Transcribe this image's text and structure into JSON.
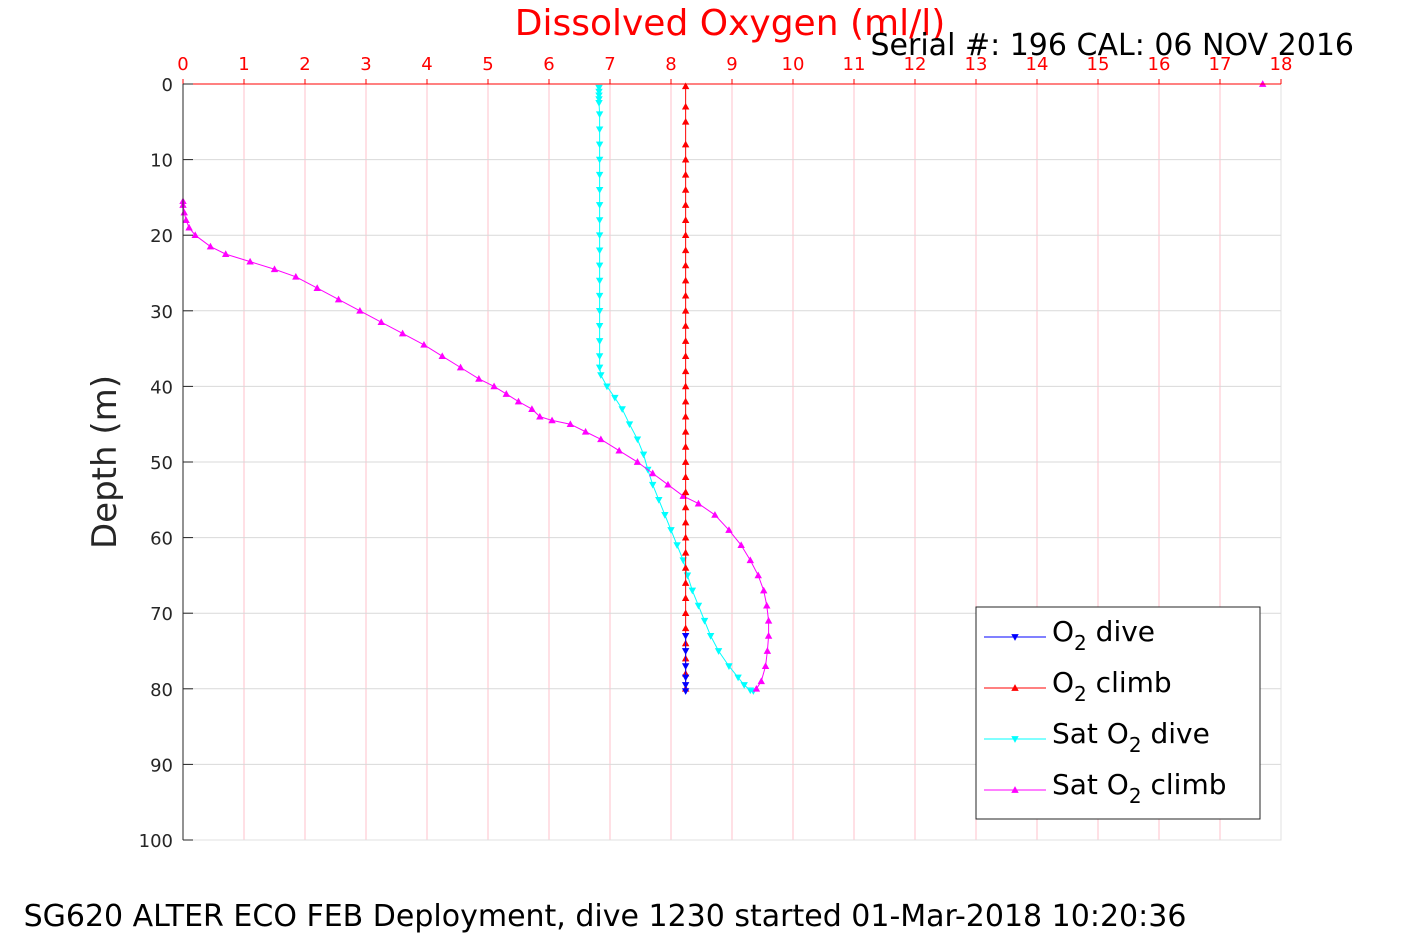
{
  "chart_data": {
    "type": "line",
    "title": "Dissolved Oxygen (ml/l)",
    "title_color": "#ff0000",
    "subtitle": "Serial #: 196  CAL: 06 NOV 2016",
    "ylabel": "Depth (m)",
    "caption": "SG620 ALTER ECO FEB Deployment, dive 1230 started 01-Mar-2018 10:20:36",
    "xlim": [
      0,
      18
    ],
    "ylim": [
      0,
      100
    ],
    "y_reversed": true,
    "x_axis_position": "top",
    "x_ticks": [
      "0",
      "1",
      "2",
      "3",
      "4",
      "5",
      "6",
      "7",
      "8",
      "9",
      "10",
      "11",
      "12",
      "13",
      "14",
      "15",
      "16",
      "17",
      "18"
    ],
    "y_ticks": [
      "0",
      "10",
      "20",
      "30",
      "40",
      "50",
      "60",
      "70",
      "80",
      "90",
      "100"
    ],
    "x_tick_color": "#ff0000",
    "x_grid_color": "#ffc0cb",
    "y_grid_color": "#d9d9d9",
    "grid": true,
    "legend_position": "bottom-right",
    "series": [
      {
        "name_main": "O",
        "name_sub": "2",
        "name_tail": " dive",
        "name_pre": "",
        "color": "#0000ff",
        "marker": "triangle-down",
        "points": [
          [
            8.24,
            73
          ],
          [
            8.24,
            75
          ],
          [
            8.24,
            77
          ],
          [
            8.24,
            78.5
          ],
          [
            8.24,
            79.5
          ],
          [
            8.24,
            80.3
          ]
        ]
      },
      {
        "name_main": "O",
        "name_sub": "2",
        "name_tail": " climb",
        "name_pre": "",
        "color": "#ff0000",
        "marker": "triangle-up",
        "points": [
          [
            8.24,
            80
          ],
          [
            8.24,
            78
          ],
          [
            8.24,
            76
          ],
          [
            8.24,
            74
          ],
          [
            8.24,
            72
          ],
          [
            8.24,
            70
          ],
          [
            8.24,
            68
          ],
          [
            8.24,
            66
          ],
          [
            8.24,
            64
          ],
          [
            8.24,
            62
          ],
          [
            8.24,
            60
          ],
          [
            8.24,
            58
          ],
          [
            8.24,
            56
          ],
          [
            8.24,
            54
          ],
          [
            8.24,
            52
          ],
          [
            8.24,
            50
          ],
          [
            8.24,
            48
          ],
          [
            8.24,
            46
          ],
          [
            8.24,
            44
          ],
          [
            8.24,
            42
          ],
          [
            8.24,
            40
          ],
          [
            8.24,
            38
          ],
          [
            8.24,
            36
          ],
          [
            8.24,
            34
          ],
          [
            8.24,
            32
          ],
          [
            8.24,
            30
          ],
          [
            8.24,
            28
          ],
          [
            8.24,
            26
          ],
          [
            8.24,
            24
          ],
          [
            8.24,
            22
          ],
          [
            8.24,
            20
          ],
          [
            8.24,
            18
          ],
          [
            8.24,
            16
          ],
          [
            8.24,
            14
          ],
          [
            8.24,
            12
          ],
          [
            8.24,
            10
          ],
          [
            8.24,
            8
          ],
          [
            8.24,
            5
          ],
          [
            8.24,
            3
          ],
          [
            8.24,
            0.3
          ]
        ]
      },
      {
        "name_main": "O",
        "name_sub": "2",
        "name_tail": " dive",
        "name_pre": "Sat ",
        "color": "#00ffff",
        "marker": "triangle-down",
        "points": [
          [
            6.82,
            0.5
          ],
          [
            6.82,
            1
          ],
          [
            6.82,
            1.5
          ],
          [
            6.82,
            2
          ],
          [
            6.82,
            2.5
          ],
          [
            6.83,
            4
          ],
          [
            6.83,
            6
          ],
          [
            6.83,
            8
          ],
          [
            6.83,
            10
          ],
          [
            6.83,
            12
          ],
          [
            6.83,
            14
          ],
          [
            6.83,
            16
          ],
          [
            6.83,
            18
          ],
          [
            6.83,
            20
          ],
          [
            6.83,
            22
          ],
          [
            6.83,
            24
          ],
          [
            6.83,
            26
          ],
          [
            6.83,
            28
          ],
          [
            6.83,
            30
          ],
          [
            6.83,
            32
          ],
          [
            6.83,
            34
          ],
          [
            6.83,
            36
          ],
          [
            6.83,
            37.5
          ],
          [
            6.85,
            38.5
          ],
          [
            6.95,
            40
          ],
          [
            7.08,
            41.5
          ],
          [
            7.2,
            43
          ],
          [
            7.32,
            45
          ],
          [
            7.45,
            47
          ],
          [
            7.55,
            49
          ],
          [
            7.62,
            51
          ],
          [
            7.7,
            53
          ],
          [
            7.8,
            55
          ],
          [
            7.9,
            57
          ],
          [
            8.0,
            59
          ],
          [
            8.1,
            61
          ],
          [
            8.2,
            63
          ],
          [
            8.27,
            65
          ],
          [
            8.35,
            67
          ],
          [
            8.45,
            69
          ],
          [
            8.55,
            71
          ],
          [
            8.65,
            73
          ],
          [
            8.78,
            75
          ],
          [
            8.95,
            77
          ],
          [
            9.1,
            78.5
          ],
          [
            9.2,
            79.5
          ],
          [
            9.3,
            80.2
          ],
          [
            9.35,
            80.3
          ]
        ]
      },
      {
        "name_main": "O",
        "name_sub": "2",
        "name_tail": " climb",
        "name_pre": "Sat ",
        "color": "#ff00ff",
        "marker": "triangle-up",
        "points": [
          [
            9.4,
            80
          ],
          [
            9.48,
            79
          ],
          [
            9.55,
            77
          ],
          [
            9.58,
            75
          ],
          [
            9.6,
            73
          ],
          [
            9.6,
            71
          ],
          [
            9.57,
            69
          ],
          [
            9.52,
            67
          ],
          [
            9.43,
            65
          ],
          [
            9.3,
            63
          ],
          [
            9.15,
            61
          ],
          [
            8.95,
            59
          ],
          [
            8.72,
            57
          ],
          [
            8.45,
            55.5
          ],
          [
            8.2,
            54.5
          ],
          [
            7.95,
            53
          ],
          [
            7.7,
            51.5
          ],
          [
            7.45,
            50
          ],
          [
            7.15,
            48.5
          ],
          [
            6.85,
            47
          ],
          [
            6.6,
            46
          ],
          [
            6.35,
            45
          ],
          [
            6.05,
            44.5
          ],
          [
            5.85,
            44
          ],
          [
            5.72,
            43
          ],
          [
            5.5,
            42
          ],
          [
            5.3,
            41
          ],
          [
            5.1,
            40
          ],
          [
            4.85,
            39
          ],
          [
            4.55,
            37.5
          ],
          [
            4.25,
            36
          ],
          [
            3.95,
            34.5
          ],
          [
            3.6,
            33
          ],
          [
            3.25,
            31.5
          ],
          [
            2.9,
            30
          ],
          [
            2.55,
            28.5
          ],
          [
            2.2,
            27
          ],
          [
            1.85,
            25.5
          ],
          [
            1.5,
            24.5
          ],
          [
            1.1,
            23.5
          ],
          [
            0.7,
            22.5
          ],
          [
            0.45,
            21.5
          ],
          [
            0.2,
            20
          ],
          [
            0.1,
            19
          ],
          [
            0.05,
            18
          ],
          [
            0.02,
            17
          ],
          [
            0.0,
            16
          ],
          [
            0.0,
            15.5
          ],
          [
            17.7,
            0
          ]
        ]
      }
    ]
  }
}
